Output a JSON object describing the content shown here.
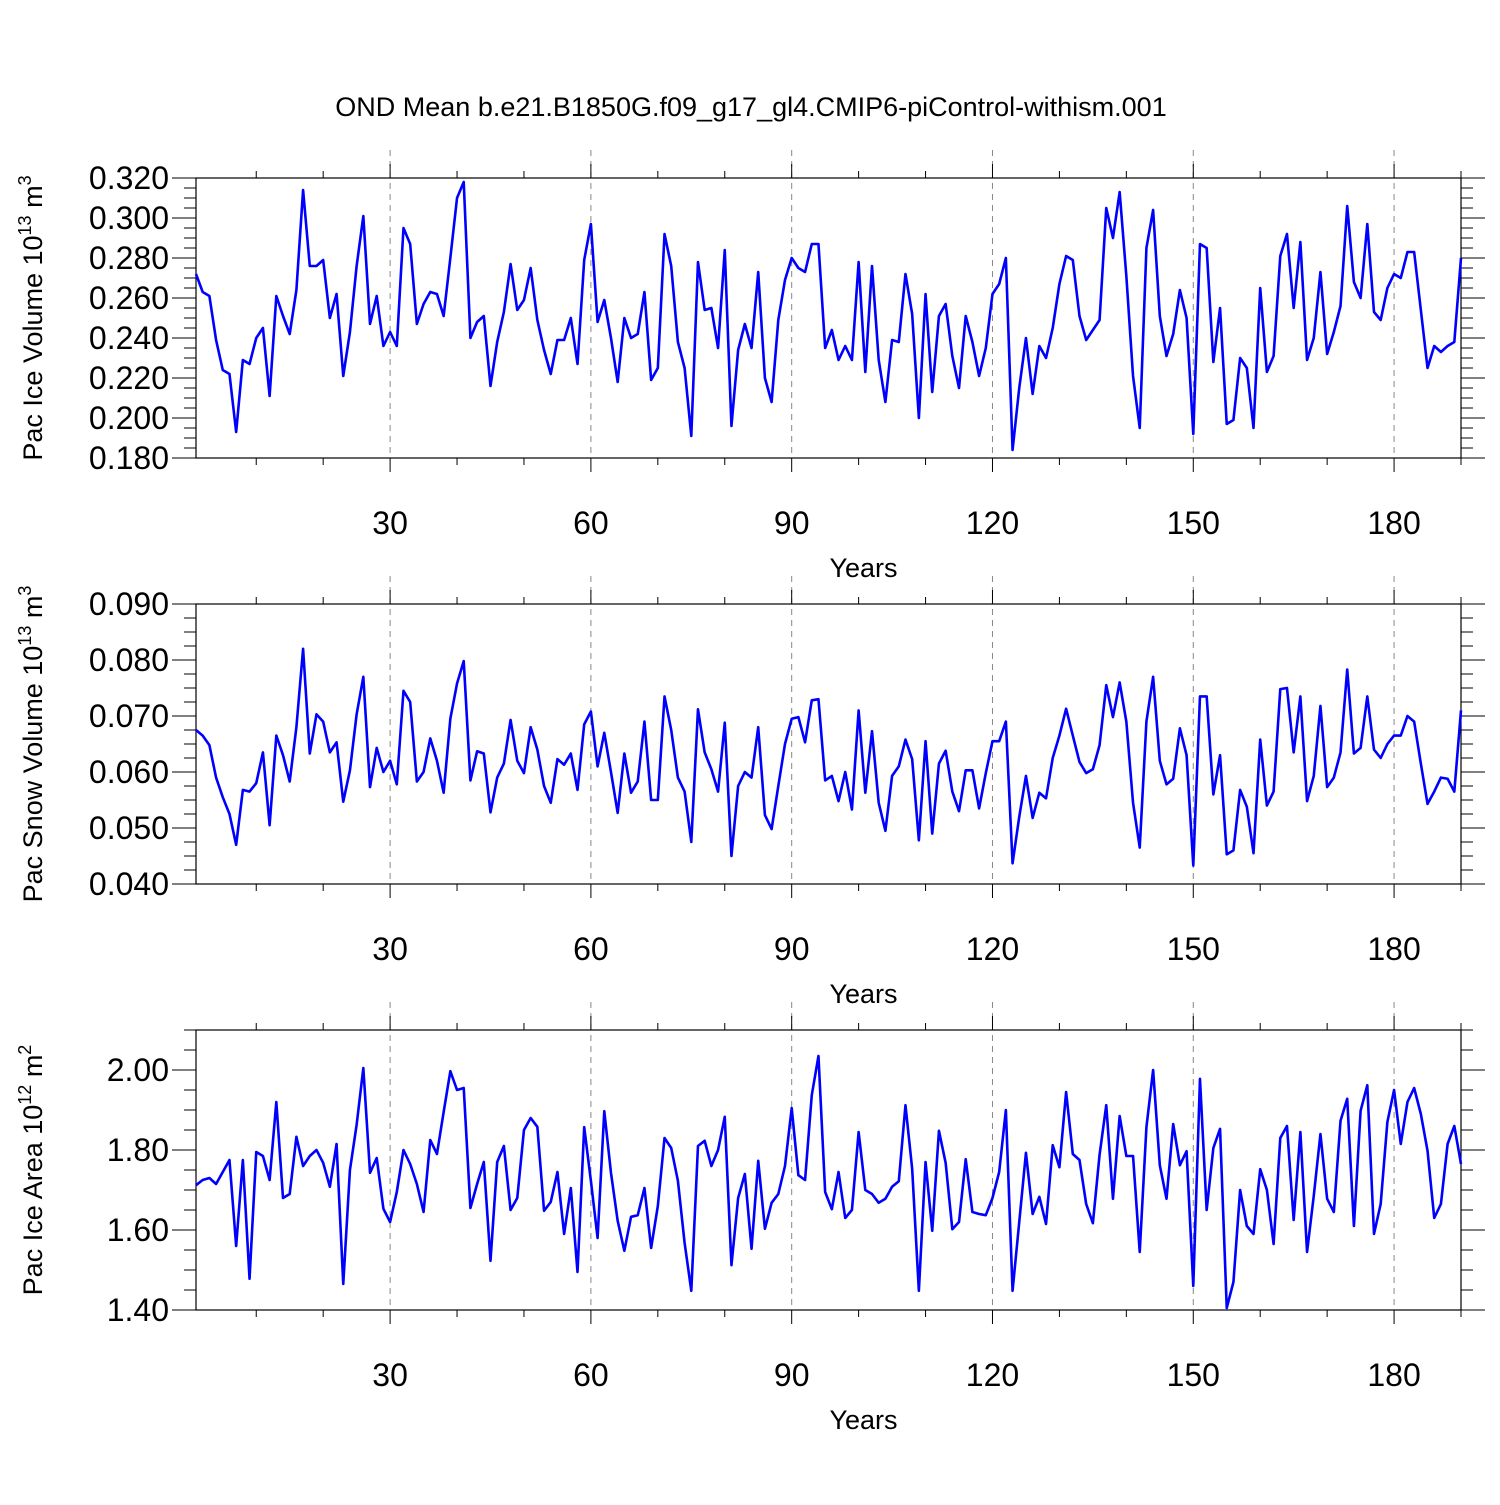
{
  "title": "OND Mean b.e21.B1850G.f09_g17_gl4.CMIP6-piControl-withism.001",
  "colors": {
    "line": "#0000ff",
    "axis": "#000000",
    "grid": "#888888"
  },
  "chart_data": [
    {
      "type": "line",
      "ylabel": {
        "main": "Pac Ice Volume 10",
        "exp": "13",
        "unit": " m",
        "unit_exp": "3"
      },
      "xlabel": "Years",
      "xlim": [
        1,
        190
      ],
      "xticks": [
        30,
        60,
        90,
        120,
        150,
        180
      ],
      "ylim": [
        0.18,
        0.32
      ],
      "yticks": [
        0.18,
        0.2,
        0.22,
        0.24,
        0.26,
        0.28,
        0.3,
        0.32
      ],
      "ytick_labels": [
        "0.180",
        "0.200",
        "0.220",
        "0.240",
        "0.260",
        "0.280",
        "0.300",
        "0.320"
      ],
      "series": [
        {
          "name": "Pac Ice Volume",
          "x_start": 1,
          "values": [
            0.272,
            0.263,
            0.261,
            0.239,
            0.224,
            0.222,
            0.193,
            0.229,
            0.227,
            0.24,
            0.245,
            0.211,
            0.261,
            0.251,
            0.242,
            0.264,
            0.314,
            0.276,
            0.276,
            0.279,
            0.25,
            0.262,
            0.221,
            0.243,
            0.276,
            0.301,
            0.247,
            0.261,
            0.236,
            0.243,
            0.236,
            0.295,
            0.287,
            0.247,
            0.257,
            0.263,
            0.262,
            0.251,
            0.28,
            0.31,
            0.318,
            0.24,
            0.248,
            0.251,
            0.216,
            0.238,
            0.253,
            0.277,
            0.254,
            0.259,
            0.275,
            0.249,
            0.234,
            0.222,
            0.239,
            0.239,
            0.25,
            0.227,
            0.279,
            0.297,
            0.248,
            0.259,
            0.24,
            0.218,
            0.25,
            0.24,
            0.242,
            0.263,
            0.219,
            0.225,
            0.292,
            0.276,
            0.238,
            0.225,
            0.191,
            0.278,
            0.254,
            0.255,
            0.235,
            0.284,
            0.196,
            0.234,
            0.247,
            0.235,
            0.273,
            0.22,
            0.208,
            0.249,
            0.269,
            0.28,
            0.275,
            0.273,
            0.287,
            0.287,
            0.235,
            0.244,
            0.229,
            0.236,
            0.229,
            0.278,
            0.223,
            0.276,
            0.229,
            0.208,
            0.239,
            0.238,
            0.272,
            0.252,
            0.2,
            0.262,
            0.213,
            0.251,
            0.257,
            0.231,
            0.215,
            0.251,
            0.238,
            0.221,
            0.235,
            0.262,
            0.267,
            0.28,
            0.184,
            0.215,
            0.24,
            0.212,
            0.236,
            0.23,
            0.245,
            0.267,
            0.281,
            0.279,
            0.251,
            0.239,
            0.244,
            0.249,
            0.305,
            0.29,
            0.313,
            0.271,
            0.221,
            0.195,
            0.285,
            0.304,
            0.251,
            0.231,
            0.242,
            0.264,
            0.25,
            0.192,
            0.287,
            0.285,
            0.228,
            0.255,
            0.197,
            0.199,
            0.23,
            0.225,
            0.195,
            0.265,
            0.223,
            0.231,
            0.281,
            0.292,
            0.255,
            0.288,
            0.229,
            0.24,
            0.273,
            0.232,
            0.243,
            0.256,
            0.306,
            0.268,
            0.26,
            0.297,
            0.253,
            0.249,
            0.265,
            0.272,
            0.27,
            0.283,
            0.283,
            0.254,
            0.225,
            0.236,
            0.233,
            0.236,
            0.238,
            0.28
          ]
        }
      ]
    },
    {
      "type": "line",
      "ylabel": {
        "main": "Pac Snow Volume 10",
        "exp": "13",
        "unit": " m",
        "unit_exp": "3"
      },
      "xlabel": "Years",
      "xlim": [
        1,
        190
      ],
      "xticks": [
        30,
        60,
        90,
        120,
        150,
        180
      ],
      "ylim": [
        0.04,
        0.09
      ],
      "yticks": [
        0.04,
        0.05,
        0.06,
        0.07,
        0.08,
        0.09
      ],
      "ytick_labels": [
        "0.040",
        "0.050",
        "0.060",
        "0.070",
        "0.080",
        "0.090"
      ],
      "series": [
        {
          "name": "Pac Snow Volume",
          "x_start": 1,
          "values": [
            0.0675,
            0.0665,
            0.0648,
            0.059,
            0.0555,
            0.0525,
            0.047,
            0.0568,
            0.0565,
            0.058,
            0.0635,
            0.0505,
            0.0665,
            0.063,
            0.0583,
            0.068,
            0.082,
            0.0633,
            0.0703,
            0.069,
            0.0635,
            0.0653,
            0.0547,
            0.0603,
            0.0703,
            0.077,
            0.0573,
            0.0643,
            0.06,
            0.062,
            0.0578,
            0.0745,
            0.0725,
            0.0583,
            0.06,
            0.066,
            0.062,
            0.0563,
            0.0695,
            0.0758,
            0.0798,
            0.0585,
            0.0637,
            0.0633,
            0.0528,
            0.059,
            0.0615,
            0.0693,
            0.062,
            0.0598,
            0.068,
            0.064,
            0.0575,
            0.0545,
            0.0623,
            0.0613,
            0.0633,
            0.0568,
            0.0685,
            0.0708,
            0.061,
            0.067,
            0.06,
            0.0527,
            0.0633,
            0.0563,
            0.0583,
            0.069,
            0.055,
            0.055,
            0.0735,
            0.0675,
            0.059,
            0.0565,
            0.0475,
            0.0712,
            0.0635,
            0.0605,
            0.0565,
            0.0688,
            0.045,
            0.0575,
            0.06,
            0.059,
            0.068,
            0.0523,
            0.0498,
            0.0575,
            0.065,
            0.0695,
            0.0698,
            0.0653,
            0.0728,
            0.073,
            0.0585,
            0.0593,
            0.0548,
            0.06,
            0.0533,
            0.071,
            0.0563,
            0.0673,
            0.0545,
            0.0495,
            0.0593,
            0.061,
            0.0658,
            0.0623,
            0.0478,
            0.0655,
            0.049,
            0.0615,
            0.0638,
            0.0565,
            0.053,
            0.0603,
            0.0603,
            0.0535,
            0.0598,
            0.0655,
            0.0655,
            0.069,
            0.0437,
            0.052,
            0.0593,
            0.0518,
            0.0563,
            0.0553,
            0.0625,
            0.0665,
            0.0713,
            0.0665,
            0.0618,
            0.0598,
            0.0605,
            0.0648,
            0.0755,
            0.0698,
            0.076,
            0.069,
            0.0545,
            0.0465,
            0.069,
            0.077,
            0.062,
            0.0578,
            0.0588,
            0.0678,
            0.063,
            0.0433,
            0.0735,
            0.0735,
            0.056,
            0.063,
            0.0453,
            0.046,
            0.0568,
            0.0538,
            0.0455,
            0.0658,
            0.054,
            0.0565,
            0.0748,
            0.075,
            0.0635,
            0.0735,
            0.0548,
            0.0593,
            0.0718,
            0.0573,
            0.059,
            0.0635,
            0.0783,
            0.0633,
            0.0643,
            0.0735,
            0.064,
            0.0625,
            0.065,
            0.0665,
            0.0665,
            0.07,
            0.069,
            0.0615,
            0.0543,
            0.0565,
            0.059,
            0.0588,
            0.0565,
            0.071
          ]
        }
      ]
    },
    {
      "type": "line",
      "ylabel": {
        "main": "Pac Ice Area 10",
        "exp": "12",
        "unit": " m",
        "unit_exp": "2"
      },
      "xlabel": "Years",
      "xlim": [
        1,
        190
      ],
      "xticks": [
        30,
        60,
        90,
        120,
        150,
        180
      ],
      "ylim": [
        1.4,
        2.1
      ],
      "yticks": [
        1.4,
        1.6,
        1.8,
        2.0
      ],
      "ytick_labels": [
        "1.40",
        "1.60",
        "1.80",
        "2.00"
      ],
      "series": [
        {
          "name": "Pac Ice Area",
          "x_start": 1,
          "values": [
            1.712,
            1.725,
            1.73,
            1.715,
            1.745,
            1.775,
            1.56,
            1.775,
            1.478,
            1.795,
            1.785,
            1.725,
            1.92,
            1.68,
            1.69,
            1.833,
            1.76,
            1.785,
            1.8,
            1.768,
            1.708,
            1.815,
            1.465,
            1.75,
            1.863,
            2.005,
            1.743,
            1.78,
            1.653,
            1.62,
            1.695,
            1.8,
            1.765,
            1.715,
            1.645,
            1.825,
            1.79,
            1.895,
            1.997,
            1.95,
            1.955,
            1.655,
            1.715,
            1.77,
            1.523,
            1.77,
            1.81,
            1.65,
            1.68,
            1.85,
            1.88,
            1.858,
            1.648,
            1.67,
            1.745,
            1.59,
            1.705,
            1.495,
            1.857,
            1.723,
            1.58,
            1.897,
            1.743,
            1.623,
            1.548,
            1.633,
            1.637,
            1.705,
            1.555,
            1.66,
            1.83,
            1.805,
            1.723,
            1.568,
            1.448,
            1.81,
            1.823,
            1.76,
            1.8,
            1.883,
            1.512,
            1.68,
            1.74,
            1.553,
            1.773,
            1.603,
            1.668,
            1.69,
            1.76,
            1.905,
            1.737,
            1.725,
            1.937,
            2.035,
            1.695,
            1.652,
            1.745,
            1.63,
            1.65,
            1.845,
            1.7,
            1.69,
            1.668,
            1.678,
            1.708,
            1.722,
            1.912,
            1.753,
            1.448,
            1.77,
            1.598,
            1.848,
            1.768,
            1.602,
            1.62,
            1.777,
            1.645,
            1.64,
            1.637,
            1.68,
            1.745,
            1.9,
            1.448,
            1.62,
            1.793,
            1.64,
            1.683,
            1.615,
            1.812,
            1.757,
            1.945,
            1.79,
            1.775,
            1.665,
            1.617,
            1.788,
            1.912,
            1.678,
            1.885,
            1.785,
            1.785,
            1.545,
            1.857,
            2.0,
            1.762,
            1.678,
            1.865,
            1.762,
            1.797,
            1.46,
            1.978,
            1.65,
            1.805,
            1.853,
            1.405,
            1.47,
            1.7,
            1.61,
            1.59,
            1.752,
            1.7,
            1.565,
            1.83,
            1.86,
            1.625,
            1.845,
            1.545,
            1.685,
            1.84,
            1.678,
            1.645,
            1.873,
            1.928,
            1.61,
            1.898,
            1.962,
            1.59,
            1.665,
            1.87,
            1.95,
            1.815,
            1.92,
            1.955,
            1.89,
            1.798,
            1.63,
            1.665,
            1.815,
            1.86,
            1.765
          ]
        }
      ]
    }
  ]
}
